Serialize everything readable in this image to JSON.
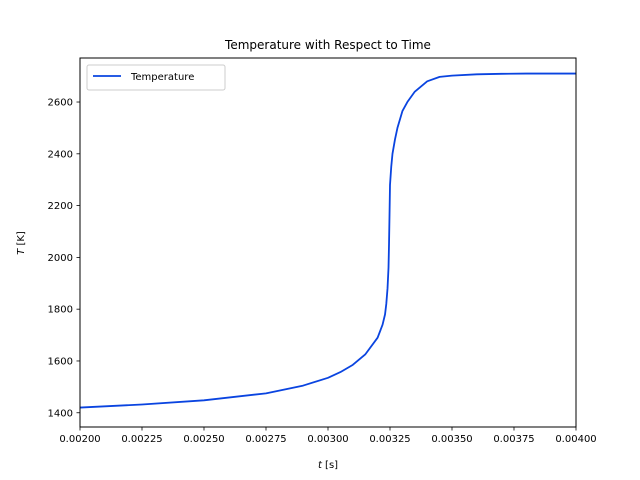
{
  "chart_data": {
    "type": "line",
    "title": "Temperature with Respect to Time",
    "xlabel_var": "t",
    "xlabel_unit": " [s]",
    "ylabel_var": "T",
    "ylabel_unit": " [K]",
    "xlim": [
      0.002,
      0.004
    ],
    "ylim": [
      1345,
      2770
    ],
    "xticks": [
      0.002,
      0.00225,
      0.0025,
      0.00275,
      0.003,
      0.00325,
      0.0035,
      0.00375,
      0.004
    ],
    "xtick_labels": [
      "0.00200",
      "0.00225",
      "0.00250",
      "0.00275",
      "0.00300",
      "0.00325",
      "0.00350",
      "0.00375",
      "0.00400"
    ],
    "yticks": [
      1400,
      1600,
      1800,
      2000,
      2200,
      2400,
      2600
    ],
    "ytick_labels": [
      "1400",
      "1600",
      "1800",
      "2000",
      "2200",
      "2400",
      "2600"
    ],
    "grid": false,
    "legend_position": "upper-left",
    "series": [
      {
        "name": "Temperature",
        "color": "#0a44e0",
        "x": [
          0.002,
          0.00225,
          0.0025,
          0.00275,
          0.0029,
          0.003,
          0.00305,
          0.0031,
          0.00315,
          0.0032,
          0.00322,
          0.00323,
          0.003235,
          0.00324,
          0.003244,
          0.003246,
          0.003248,
          0.00325,
          0.003255,
          0.00326,
          0.00327,
          0.00328,
          0.0033,
          0.00332,
          0.00335,
          0.0034,
          0.00345,
          0.0035,
          0.0036,
          0.0037,
          0.0038,
          0.0039,
          0.004
        ],
        "y": [
          1420,
          1432,
          1448,
          1475,
          1505,
          1535,
          1557,
          1585,
          1625,
          1690,
          1740,
          1780,
          1820,
          1880,
          1960,
          2050,
          2160,
          2280,
          2350,
          2400,
          2455,
          2500,
          2565,
          2600,
          2640,
          2680,
          2697,
          2702,
          2707,
          2709,
          2710,
          2710,
          2710
        ]
      }
    ]
  }
}
